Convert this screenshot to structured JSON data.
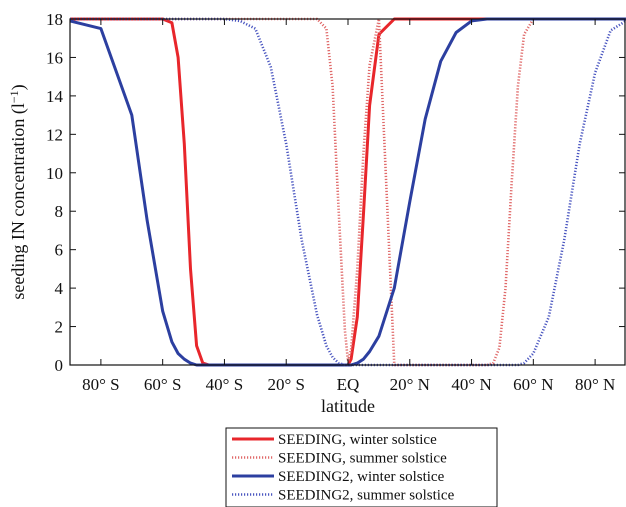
{
  "chart_data": {
    "type": "line",
    "xlabel": "latitude",
    "ylabel": "seeding IN concentration (l",
    "ylabel_sup": "−1",
    "ylabel_close": ")",
    "xlim": [
      -90,
      90
    ],
    "ylim": [
      0,
      18
    ],
    "x_ticks": [
      {
        "value": -80,
        "label": "80° S"
      },
      {
        "value": -60,
        "label": "60° S"
      },
      {
        "value": -40,
        "label": "40° S"
      },
      {
        "value": -20,
        "label": "20° S"
      },
      {
        "value": 0,
        "label": "EQ"
      },
      {
        "value": 20,
        "label": "20° N"
      },
      {
        "value": 40,
        "label": "40° N"
      },
      {
        "value": 60,
        "label": "60° N"
      },
      {
        "value": 80,
        "label": "80° N"
      }
    ],
    "y_ticks": [
      0,
      2,
      4,
      6,
      8,
      10,
      12,
      14,
      16,
      18
    ],
    "grid": false,
    "legend_position": "below plot",
    "x": [
      -90,
      -80,
      -70,
      -65,
      -60,
      -57,
      -55,
      -53,
      -51,
      -49,
      -47,
      -45,
      -40,
      -35,
      -30,
      -25,
      -20,
      -15,
      -10,
      -7,
      -5,
      -3,
      -1,
      0,
      1,
      3,
      5,
      7,
      10,
      15,
      20,
      25,
      30,
      35,
      40,
      45,
      47,
      49,
      51,
      53,
      55,
      57,
      60,
      65,
      70,
      75,
      80,
      85,
      90
    ],
    "series": [
      {
        "name": "SEEDING, winter solstice",
        "color": "#e8262b",
        "style": "solid",
        "values": [
          18,
          18,
          18,
          18,
          18,
          17.8,
          16.0,
          11.5,
          5.0,
          1.0,
          0.1,
          0,
          0,
          0,
          0,
          0,
          0,
          0,
          0,
          0,
          0,
          0,
          0,
          0,
          0.3,
          2.5,
          7.8,
          13.5,
          17.2,
          18,
          18,
          18,
          18,
          18,
          18,
          18,
          18,
          18,
          18,
          18,
          18,
          18,
          18,
          18,
          18,
          18,
          18,
          18,
          18
        ]
      },
      {
        "name": "SEEDING, summer solstice",
        "color": "#e06a6a",
        "style": "dotted",
        "values": [
          18,
          18,
          18,
          18,
          18,
          18,
          18,
          18,
          18,
          18,
          18,
          18,
          18,
          18,
          18,
          18,
          18,
          18,
          18,
          17.5,
          14.5,
          8.0,
          1.8,
          0.2,
          0.8,
          5.0,
          11.0,
          15.6,
          18,
          0,
          0,
          0,
          0,
          0,
          0,
          0,
          0.1,
          0.9,
          4.0,
          9.5,
          14.5,
          17.2,
          18,
          18,
          18,
          18,
          18,
          18,
          18
        ]
      },
      {
        "name": "SEEDING2, winter solstice",
        "color": "#2c3fa0",
        "style": "solid",
        "values": [
          17.9,
          17.5,
          13.0,
          7.5,
          2.8,
          1.2,
          0.6,
          0.3,
          0.1,
          0,
          0,
          0,
          0,
          0,
          0,
          0,
          0,
          0,
          0,
          0,
          0,
          0,
          0,
          0,
          0,
          0.1,
          0.3,
          0.7,
          1.5,
          4.0,
          8.5,
          12.8,
          15.8,
          17.3,
          17.9,
          18,
          18,
          18,
          18,
          18,
          18,
          18,
          18,
          18,
          18,
          18,
          18,
          18,
          18
        ]
      },
      {
        "name": "SEEDING2, summer solstice",
        "color": "#4a56c0",
        "style": "dotted",
        "values": [
          18,
          18,
          18,
          18,
          18,
          18,
          18,
          18,
          18,
          18,
          18,
          18,
          18,
          17.9,
          17.5,
          15.5,
          11.5,
          6.5,
          2.6,
          1.0,
          0.4,
          0.1,
          0,
          0,
          0,
          0,
          0,
          0,
          0,
          0,
          0,
          0,
          0,
          0,
          0,
          0,
          0,
          0,
          0,
          0,
          0,
          0.1,
          0.6,
          2.5,
          6.5,
          11.5,
          15.2,
          17.4,
          17.9
        ]
      }
    ]
  }
}
